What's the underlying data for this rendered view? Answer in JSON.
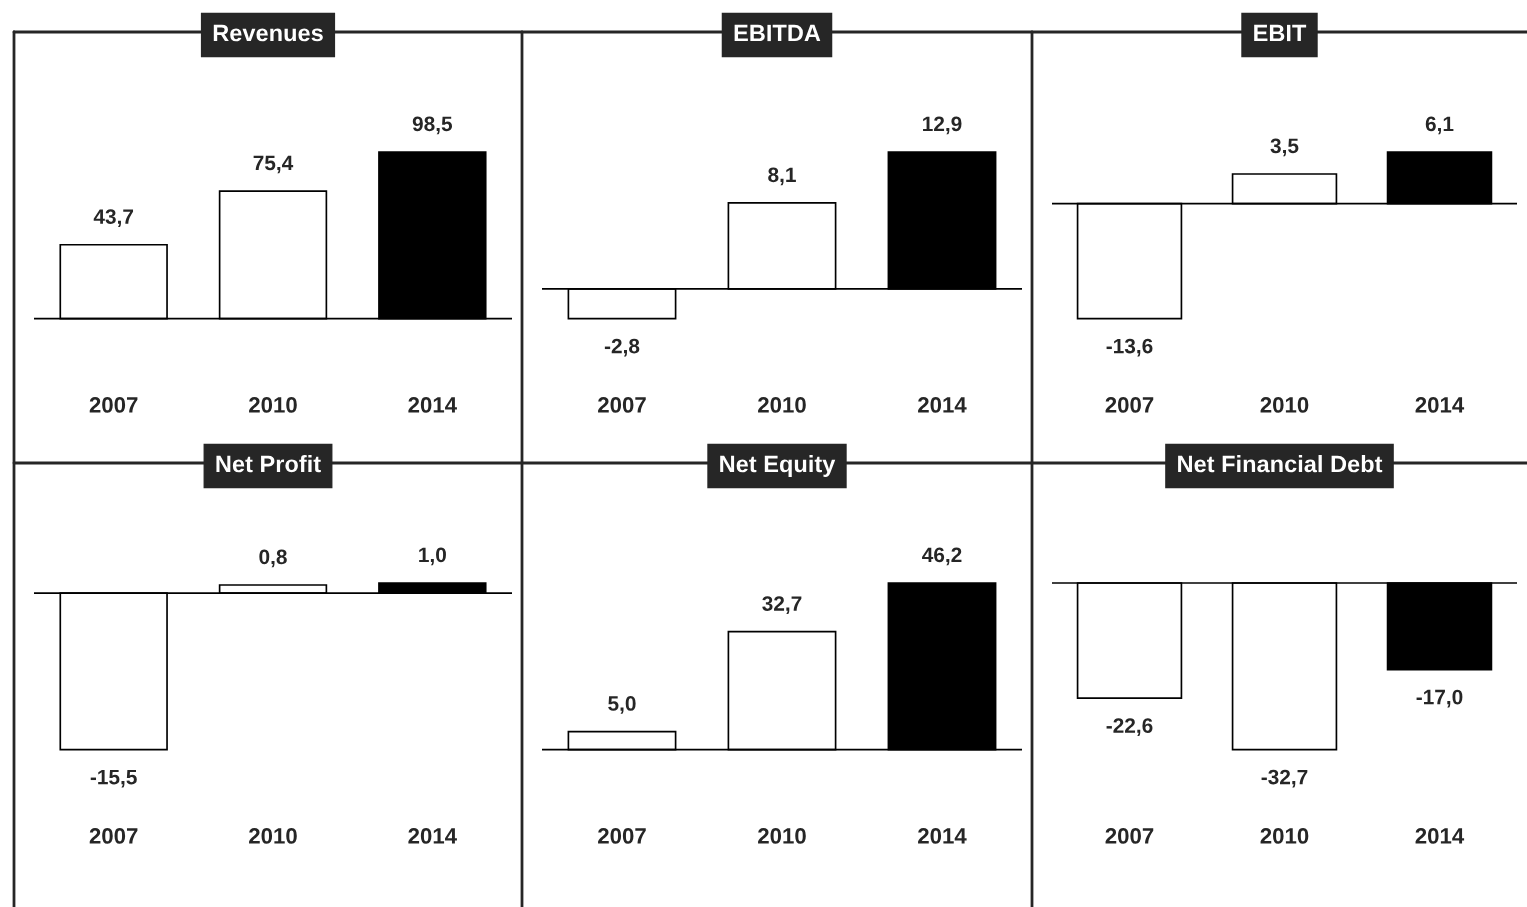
{
  "chart_data": [
    {
      "type": "bar",
      "title": "Revenues",
      "categories": [
        "2007",
        "2010",
        "2014"
      ],
      "values": [
        43.7,
        75.4,
        98.5
      ],
      "colors": [
        "#ffffff",
        "#ffffff",
        "#000000"
      ],
      "value_labels": [
        "43,7",
        "75,4",
        "98,5"
      ]
    },
    {
      "type": "bar",
      "title": "EBITDA",
      "categories": [
        "2007",
        "2010",
        "2014"
      ],
      "values": [
        -2.8,
        8.1,
        12.9
      ],
      "colors": [
        "#ffffff",
        "#ffffff",
        "#000000"
      ],
      "value_labels": [
        "-2,8",
        "8,1",
        "12,9"
      ]
    },
    {
      "type": "bar",
      "title": "EBIT",
      "categories": [
        "2007",
        "2010",
        "2014"
      ],
      "values": [
        -13.6,
        3.5,
        6.1
      ],
      "colors": [
        "#ffffff",
        "#ffffff",
        "#000000"
      ],
      "value_labels": [
        "-13,6",
        "3,5",
        "6,1"
      ]
    },
    {
      "type": "bar",
      "title": "Net Profit",
      "categories": [
        "2007",
        "2010",
        "2014"
      ],
      "values": [
        -15.5,
        0.8,
        1.0
      ],
      "colors": [
        "#ffffff",
        "#ffffff",
        "#000000"
      ],
      "value_labels": [
        "-15,5",
        "0,8",
        "1,0"
      ]
    },
    {
      "type": "bar",
      "title": "Net Equity",
      "categories": [
        "2007",
        "2010",
        "2014"
      ],
      "values": [
        5.0,
        32.7,
        46.2
      ],
      "colors": [
        "#ffffff",
        "#ffffff",
        "#000000"
      ],
      "value_labels": [
        "5,0",
        "32,7",
        "46,2"
      ]
    },
    {
      "type": "bar",
      "title": "Net Financial Debt",
      "categories": [
        "2007",
        "2010",
        "2014"
      ],
      "values": [
        -22.6,
        -32.7,
        -17.0
      ],
      "colors": [
        "#ffffff",
        "#ffffff",
        "#000000"
      ],
      "value_labels": [
        "-22,6",
        "-32,7",
        "-17,0"
      ]
    }
  ]
}
